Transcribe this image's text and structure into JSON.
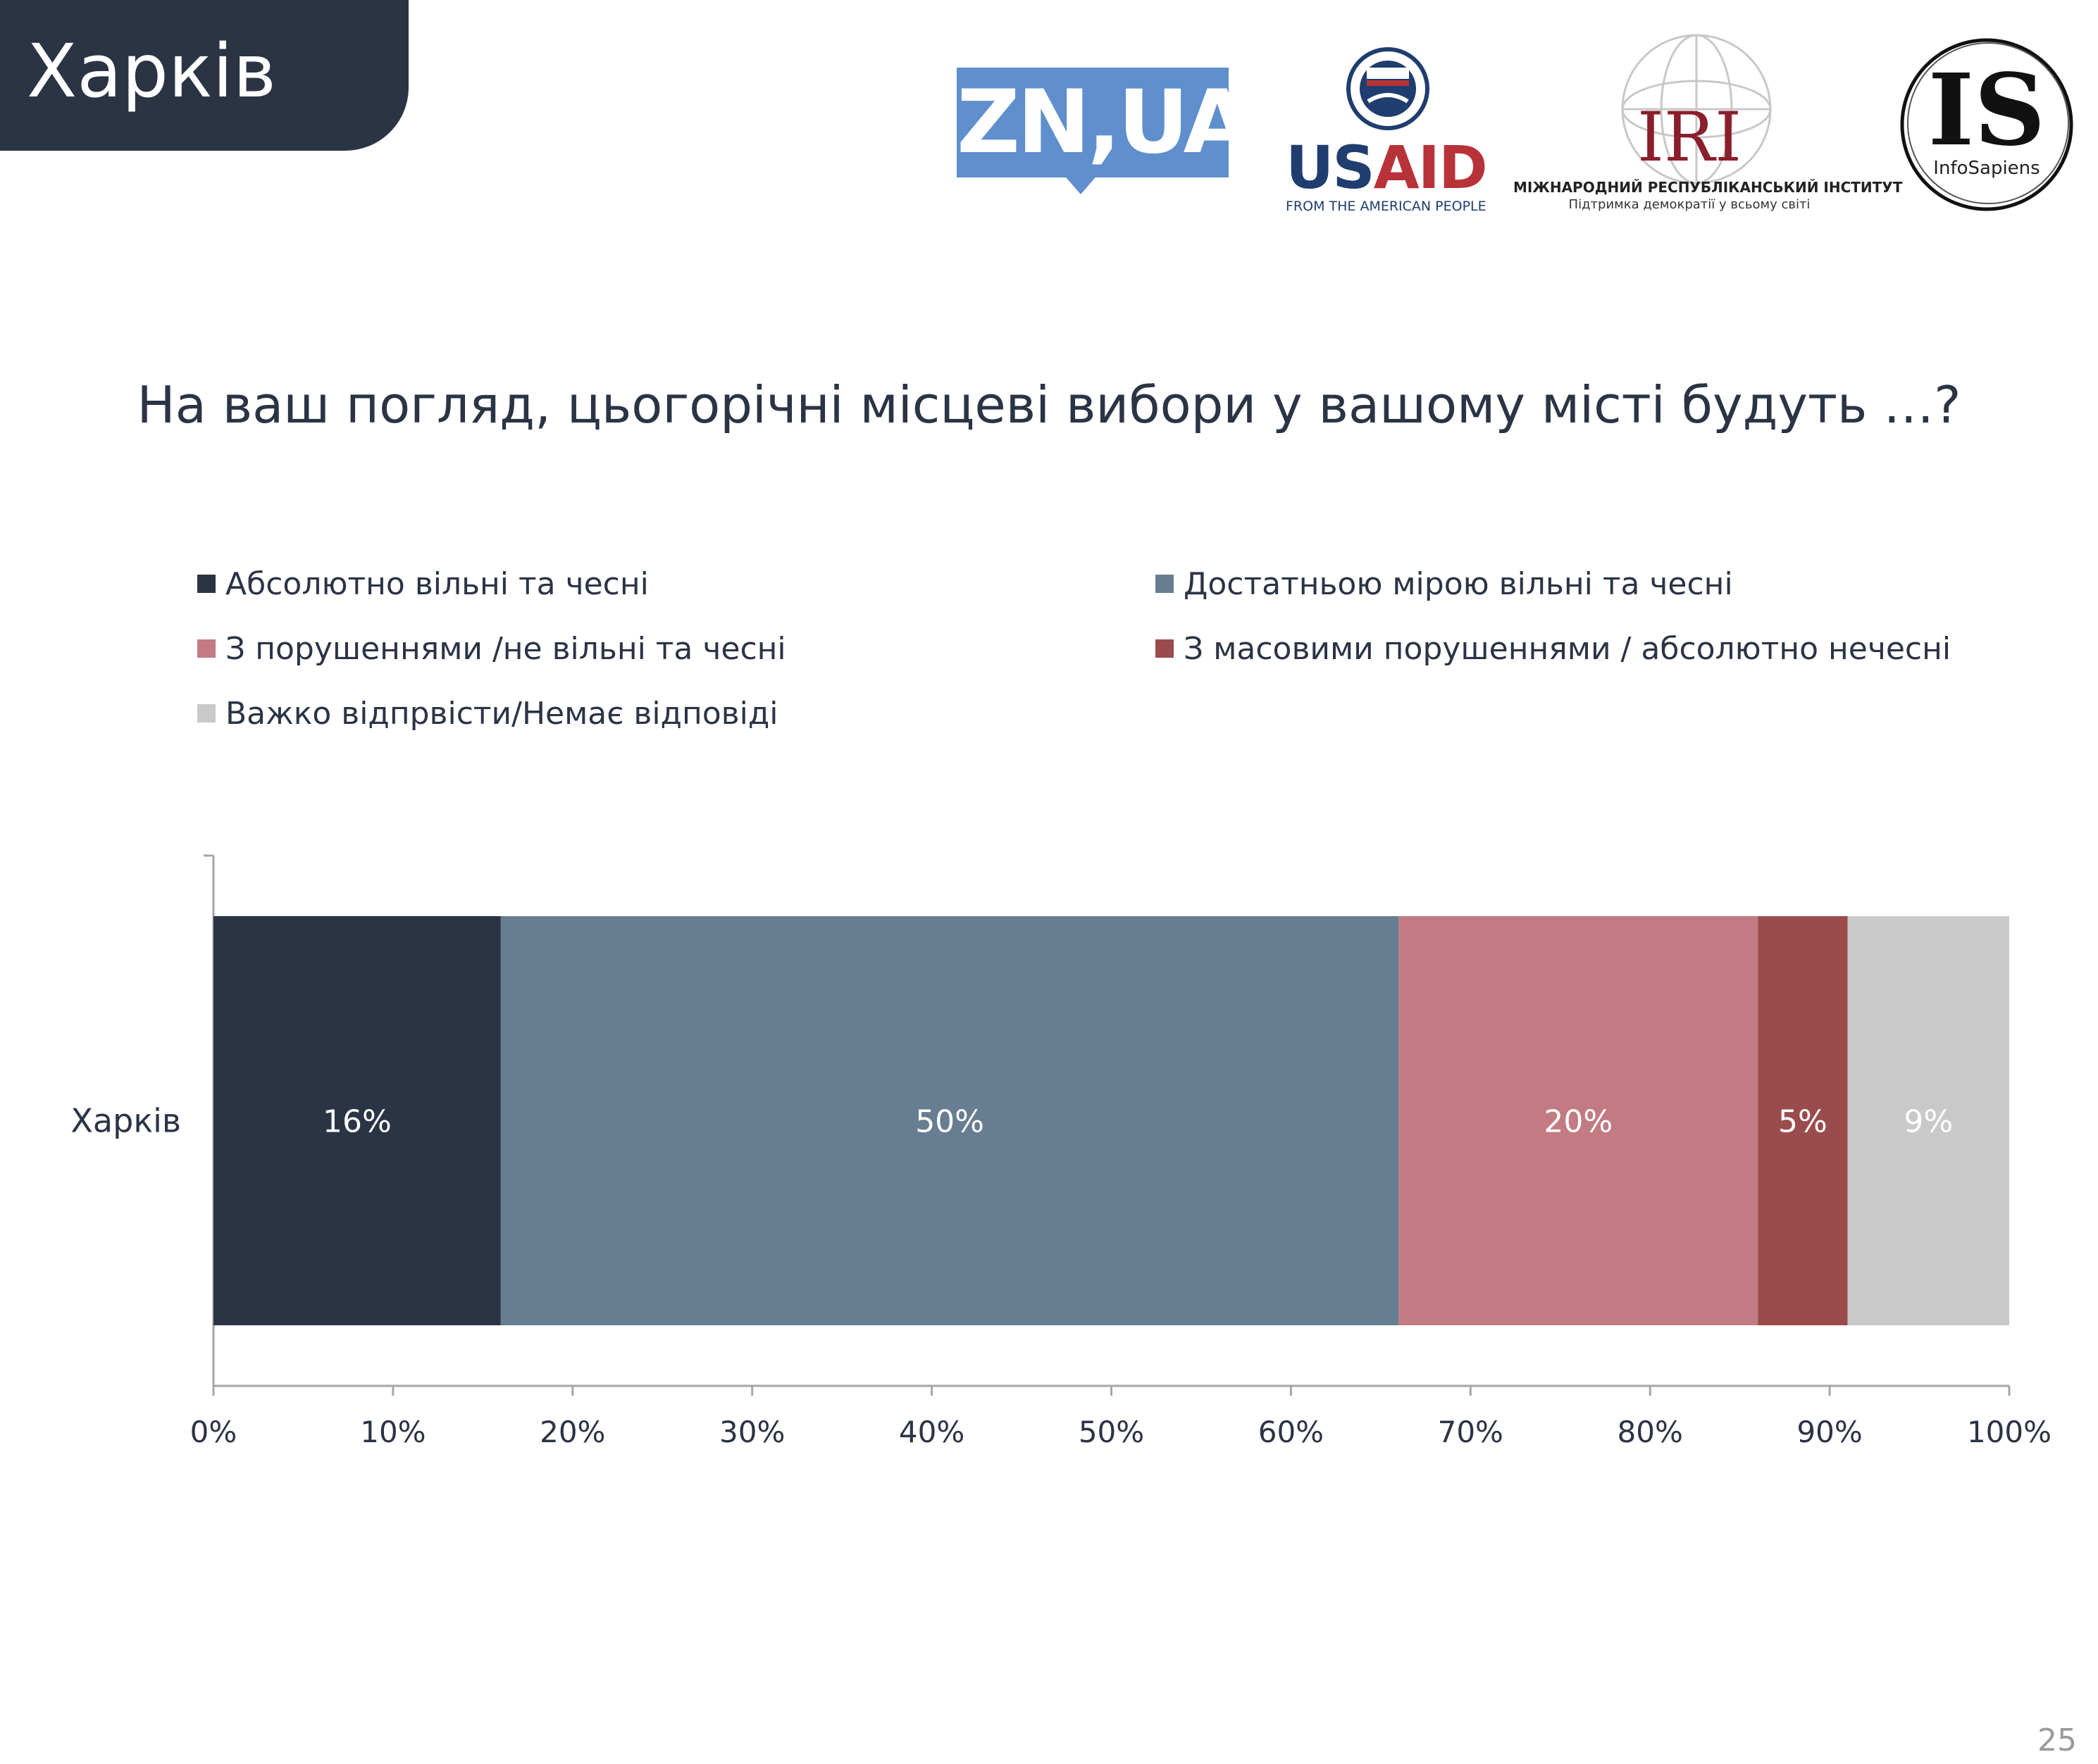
{
  "header": {
    "city_label": "Харків"
  },
  "logos": {
    "zn": "ZN,UA",
    "usaid": {
      "us": "US",
      "aid": "AID",
      "tagline": "FROM THE AMERICAN PEOPLE"
    },
    "iri": {
      "name": "IRI",
      "line1": "МІЖНАРОДНИЙ РЕСПУБЛІКАНСЬКИЙ ІНСТИТУТ",
      "line2": "Підтримка демократії у всьому світі"
    },
    "infosapiens": {
      "letters": "IS",
      "name": "InfoSapiens"
    }
  },
  "page_number": "25",
  "chart_data": {
    "type": "bar",
    "orientation": "horizontal",
    "stacked": true,
    "title": "На ваш погляд, цьогорічні місцеві вибори у вашому місті будуть …?",
    "categories": [
      "Харків"
    ],
    "series": [
      {
        "name": "Абсолютно вільні та чесні",
        "values": [
          16
        ],
        "label": "16%",
        "color": "#2a3445",
        "label_color": "#ffffff"
      },
      {
        "name": "Достатньою мірою вільні та чесні",
        "values": [
          50
        ],
        "label": "50%",
        "color": "#677d91",
        "label_color": "#ffffff"
      },
      {
        "name": "З порушеннями /не вільні та чесні",
        "values": [
          20
        ],
        "label": "20%",
        "color": "#c27a83",
        "label_color": "#ffffff"
      },
      {
        "name": "З масовими порушеннями / абсолютно нечесні",
        "values": [
          5
        ],
        "label": "5%",
        "color": "#9a4c4d",
        "label_color": "#ffffff"
      },
      {
        "name": "Важко відпрвісти/Немає відповіді",
        "values": [
          9
        ],
        "label": "9%",
        "color": "#c9c9c9",
        "label_color": "#ffffff"
      }
    ],
    "xlim": [
      0,
      100
    ],
    "xticks": [
      "0%",
      "10%",
      "20%",
      "30%",
      "40%",
      "50%",
      "60%",
      "70%",
      "80%",
      "90%",
      "100%"
    ],
    "legend_position": "top",
    "grid": false
  }
}
